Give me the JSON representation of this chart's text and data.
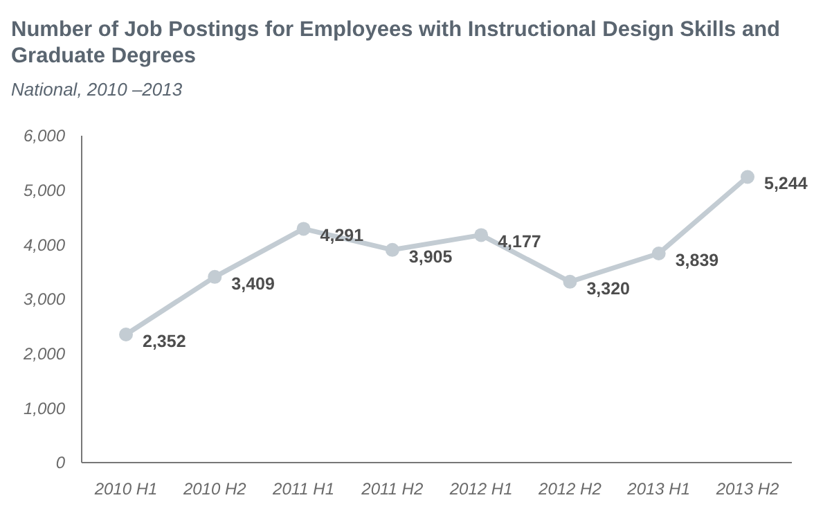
{
  "chart_data": {
    "type": "line",
    "title": "Number of Job Postings for Employees with Instructional Design Skills and Graduate Degrees",
    "subtitle": "National, 2010 –2013",
    "categories": [
      "2010 H1",
      "2010 H2",
      "2011 H1",
      "2011 H2",
      "2012 H1",
      "2012 H2",
      "2013 H1",
      "2013 H2"
    ],
    "series": [
      {
        "color": "#c3ccd3",
        "values": [
          2352,
          3409,
          4291,
          3905,
          4177,
          3320,
          3839,
          5244
        ]
      }
    ],
    "ylim": [
      0,
      6000
    ],
    "yticks": [
      {
        "value": 0,
        "label": "0"
      },
      {
        "value": 1000,
        "label": "1,000"
      },
      {
        "value": 2000,
        "label": "2,000"
      },
      {
        "value": 3000,
        "label": "3,000"
      },
      {
        "value": 4000,
        "label": "4,000"
      },
      {
        "value": 5000,
        "label": "5,000"
      },
      {
        "value": 6000,
        "label": "6,000"
      }
    ],
    "value_labels": [
      "2,352",
      "3,409",
      "4,291",
      "3,905",
      "4,177",
      "3,320",
      "3,839",
      "5,244"
    ],
    "marker": "circle",
    "line_style": "solid"
  }
}
